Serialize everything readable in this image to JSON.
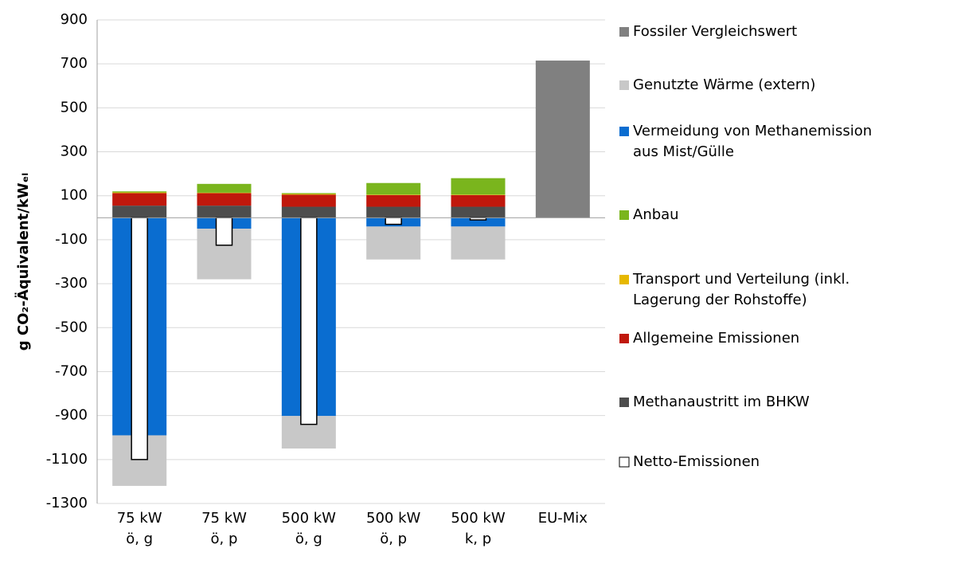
{
  "chart_data": {
    "type": "stacked_bar",
    "y_label": "g CO₂-Äquivalent/kWₑₗ",
    "categories": [
      "75 kW\nö, g",
      "75 kW\nö, p",
      "500 kW\nö, g",
      "500 kW\nö, p",
      "500 kW\nk, p",
      "EU-Mix"
    ],
    "ylim": [
      -1300,
      900
    ],
    "yticks": [
      -1300,
      -1100,
      -900,
      -700,
      -500,
      -300,
      -100,
      100,
      300,
      500,
      700,
      900
    ],
    "grid": true,
    "legend": "right",
    "series": [
      {
        "name": "Fossiler Vergleichswert",
        "color": "#808080",
        "values": [
          null,
          null,
          null,
          null,
          null,
          715
        ]
      },
      {
        "name": "Genutzte Wärme (extern)",
        "color": "#c8c8c8",
        "values": [
          -230,
          -230,
          -148,
          -150,
          -150,
          null
        ]
      },
      {
        "name": "Vermeidung von Methanemission\naus Mist/Gülle",
        "color": "#0a6dd0",
        "values": [
          -990,
          -50,
          -902,
          -40,
          -40,
          null
        ]
      },
      {
        "name": "Anbau",
        "color": "#7ab51d",
        "values": [
          5,
          40,
          4,
          53,
          75,
          null
        ]
      },
      {
        "name": "Transport und Verteilung (inkl.\nLagerung der Rohstoffe)",
        "color": "#e6b800",
        "values": [
          3,
          2,
          3,
          2,
          2,
          null
        ]
      },
      {
        "name": "Allgemeine Emissionen",
        "color": "#c0180c",
        "values": [
          57,
          57,
          55,
          53,
          53,
          null
        ]
      },
      {
        "name": "Methanaustritt im BHKW",
        "color": "#4d4d4d",
        "values": [
          55,
          55,
          50,
          50,
          50,
          null
        ]
      }
    ],
    "net": {
      "name": "Netto-Emissionen",
      "color": "#ffffff",
      "values": [
        -1100,
        -125,
        -940,
        -30,
        -10,
        null
      ]
    }
  }
}
